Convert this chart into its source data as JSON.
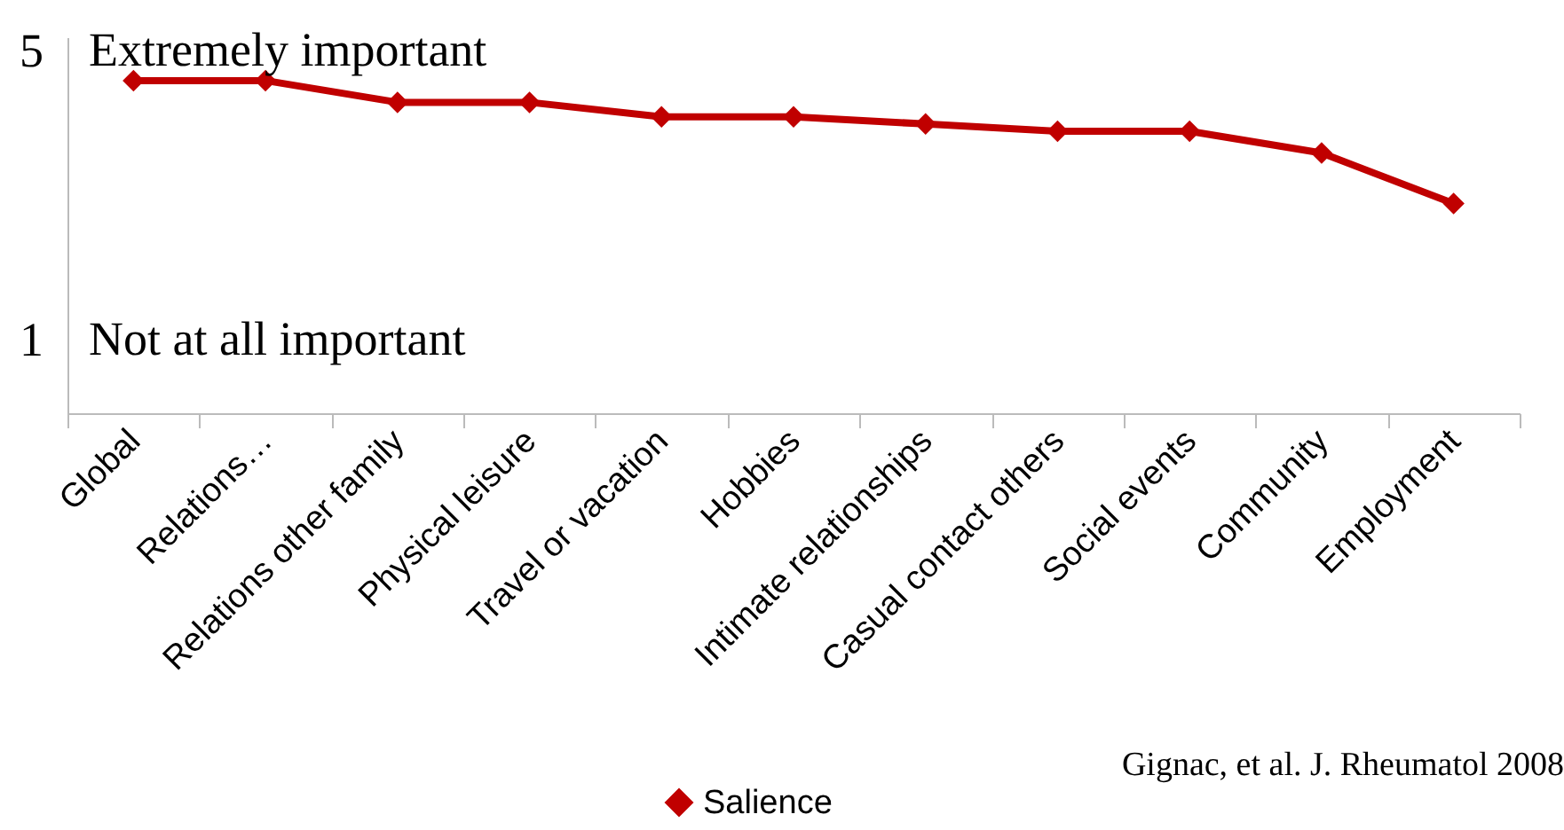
{
  "chart_data": {
    "type": "line",
    "categories": [
      "Global",
      "Relations…",
      "Relations other family",
      "Physical leisure",
      "Travel or vacation",
      "Hobbies",
      "Intimate relationships",
      "Casual contact others",
      "Social events",
      "Community",
      "Employment"
    ],
    "series": [
      {
        "name": "Salience",
        "color": "#c00000",
        "values": [
          4.6,
          4.6,
          4.3,
          4.3,
          4.1,
          4.1,
          4.0,
          3.9,
          3.9,
          3.6,
          2.9
        ]
      }
    ],
    "ylim": [
      0,
      5.2
    ],
    "yticks": [
      5,
      1
    ],
    "grid": false,
    "legend": "bottom",
    "marker": "diamond",
    "line_style": "solid",
    "annotations": [
      "Extremely important",
      "Not at all important",
      "Gignac, et al. J. Rheumatol 2008"
    ]
  }
}
